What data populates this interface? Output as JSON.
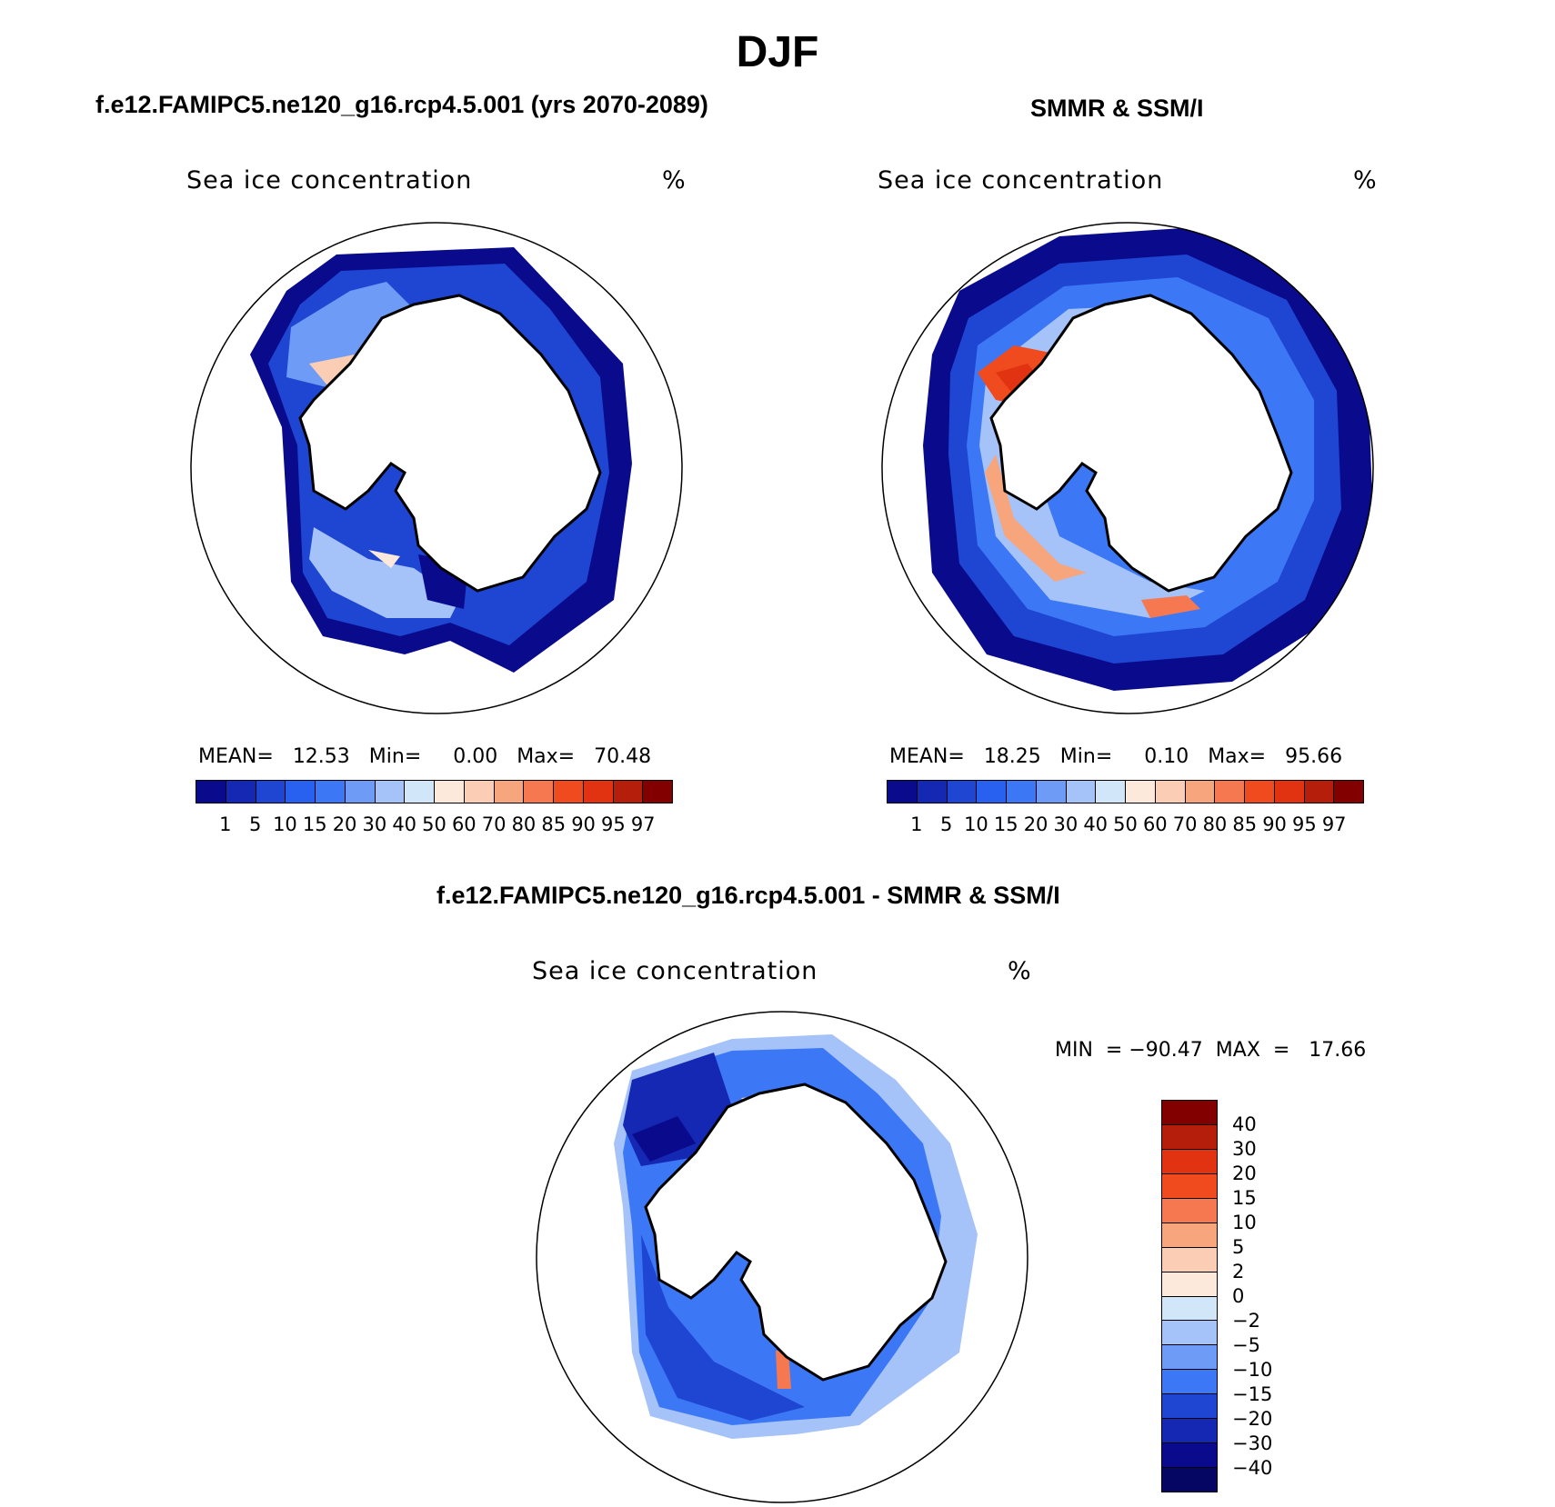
{
  "figure": {
    "title": "DJF"
  },
  "panels": {
    "model": {
      "title": "f.e12.FAMIPC5.ne120_g16.rcp4.5.001 (yrs 2070-2089)",
      "variable": "Sea ice concentration",
      "units": "%",
      "stats": {
        "mean": "12.53",
        "min": "0.00",
        "max": "70.48"
      }
    },
    "obs": {
      "title": "SMMR & SSM/I",
      "variable": "Sea ice concentration",
      "units": "%",
      "stats": {
        "mean": "18.25",
        "min": "0.10",
        "max": "95.66"
      }
    },
    "diff": {
      "title": "f.e12.FAMIPC5.ne120_g16.rcp4.5.001 - SMMR & SSM/I",
      "variable": "Sea ice concentration",
      "units": "%",
      "stats": {
        "min": "−90.47",
        "max": "17.66"
      }
    }
  },
  "stat_labels": {
    "mean": "MEAN=",
    "min": "Min=",
    "max": "Max=",
    "min_eq": "MIN  =",
    "max_eq": "MAX  ="
  },
  "colorbars": {
    "concentration": {
      "levels": [
        "1",
        "5",
        "10",
        "15",
        "20",
        "30",
        "40",
        "50",
        "60",
        "70",
        "80",
        "85",
        "90",
        "95",
        "97"
      ],
      "colors": [
        "#0a0a8c",
        "#1428b4",
        "#1e46d2",
        "#2860f0",
        "#3c78f5",
        "#6e9bf5",
        "#a5c3f8",
        "#d2e6fa",
        "#fde9dc",
        "#fbcdb4",
        "#f7a57d",
        "#f57850",
        "#f04b1e",
        "#e13212",
        "#b41e0a",
        "#820000"
      ]
    },
    "difference": {
      "levels": [
        "40",
        "30",
        "20",
        "15",
        "10",
        "5",
        "2",
        "0",
        "−2",
        "−5",
        "−10",
        "−15",
        "−20",
        "−30",
        "−40"
      ],
      "colors": [
        "#820000",
        "#b41e0a",
        "#e13212",
        "#f04b1e",
        "#f57850",
        "#f7a57d",
        "#fbcdb4",
        "#fde9dc",
        "#d2e6fa",
        "#a5c3f8",
        "#6e9bf5",
        "#3c78f5",
        "#1e46d2",
        "#1428b4",
        "#0a0a8c",
        "#050564"
      ]
    }
  },
  "chart_data": [
    {
      "type": "heatmap",
      "title": "f.e12.FAMIPC5.ne120_g16.rcp4.5.001 (yrs 2070-2089)",
      "variable": "Sea ice concentration",
      "units": "%",
      "projection": "south polar stereographic",
      "summary": {
        "mean": 12.53,
        "min": 0.0,
        "max": 70.48
      },
      "contour_levels": [
        1,
        5,
        10,
        15,
        20,
        30,
        40,
        50,
        60,
        70,
        80,
        85,
        90,
        95,
        97
      ]
    },
    {
      "type": "heatmap",
      "title": "SMMR & SSM/I",
      "variable": "Sea ice concentration",
      "units": "%",
      "projection": "south polar stereographic",
      "summary": {
        "mean": 18.25,
        "min": 0.1,
        "max": 95.66
      },
      "contour_levels": [
        1,
        5,
        10,
        15,
        20,
        30,
        40,
        50,
        60,
        70,
        80,
        85,
        90,
        95,
        97
      ]
    },
    {
      "type": "heatmap",
      "title": "f.e12.FAMIPC5.ne120_g16.rcp4.5.001 - SMMR & SSM/I",
      "variable": "Sea ice concentration",
      "units": "%",
      "projection": "south polar stereographic",
      "summary": {
        "min": -90.47,
        "max": 17.66
      },
      "contour_levels": [
        -40,
        -30,
        -20,
        -15,
        -10,
        -5,
        -2,
        0,
        2,
        5,
        10,
        15,
        20,
        30,
        40
      ]
    }
  ]
}
